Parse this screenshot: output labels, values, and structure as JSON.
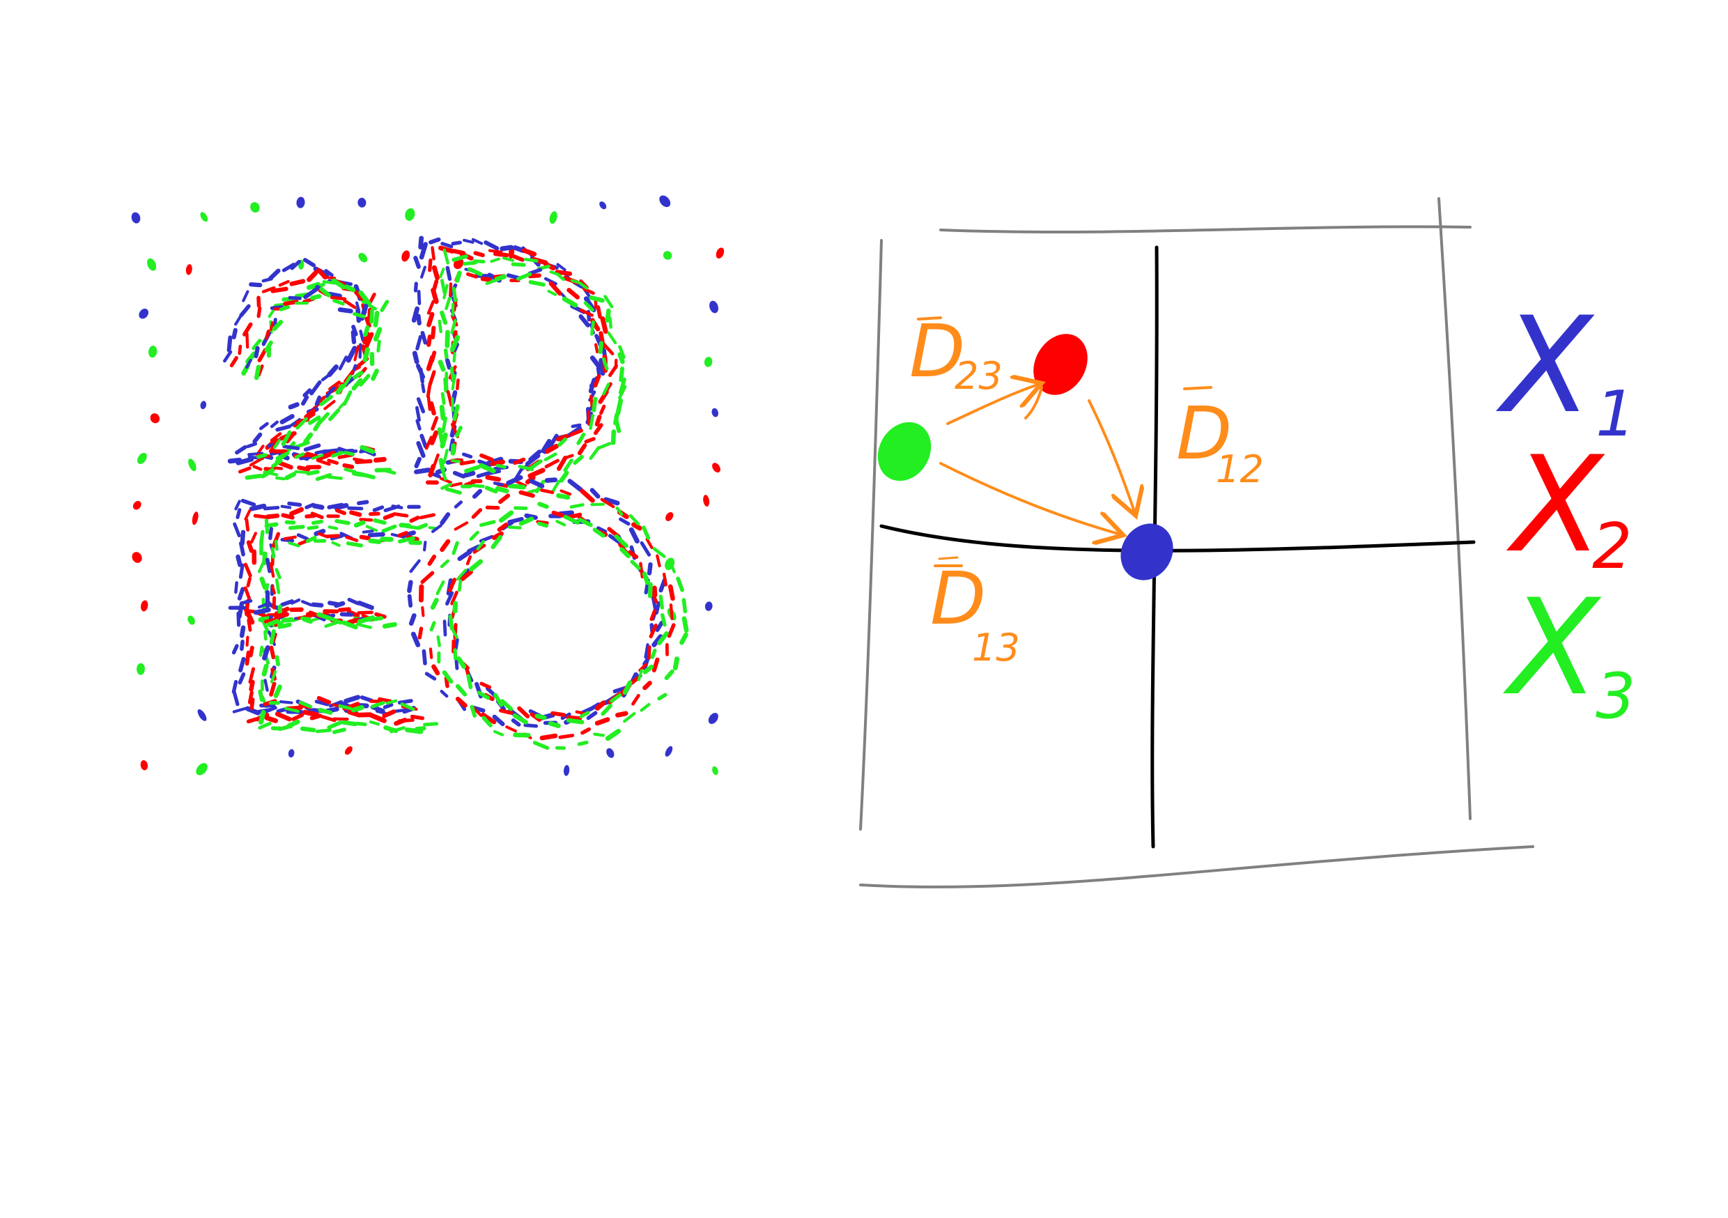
{
  "colors": {
    "x1": "#3333cc",
    "x2": "#ff0000",
    "x3": "#22ee22",
    "displacement": "#ff8c1a",
    "frame": "#808080",
    "axis": "#000000"
  },
  "left_panel": {
    "letters": [
      "2",
      "D",
      "E",
      "O"
    ]
  },
  "vectors": [
    {
      "id": "d23",
      "main": "D",
      "sub": "23"
    },
    {
      "id": "d12",
      "main": "D",
      "sub": "12"
    },
    {
      "id": "d13",
      "main": "D",
      "sub": "13"
    }
  ],
  "legend": [
    {
      "main": "X",
      "sub": "1",
      "color": "#3333cc"
    },
    {
      "main": "X",
      "sub": "2",
      "color": "#ff0000"
    },
    {
      "main": "X",
      "sub": "3",
      "color": "#22ee22"
    }
  ]
}
